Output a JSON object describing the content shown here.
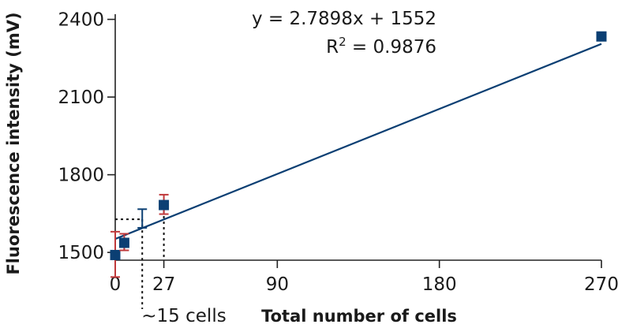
{
  "chart_data": {
    "type": "scatter",
    "title": "",
    "xlabel": "Total number of cells",
    "ylabel": "Fluorescence intensity (mV)",
    "xlim": [
      0,
      270
    ],
    "ylim": [
      1470,
      2420
    ],
    "x_ticks": [
      0,
      27,
      90,
      180,
      270
    ],
    "x_tick_labels": [
      "0",
      "27",
      "90",
      "180",
      "270"
    ],
    "y_ticks": [
      1500,
      1800,
      2100,
      2400
    ],
    "y_tick_labels": [
      "1500",
      "1800",
      "2100",
      "2400"
    ],
    "grid": false,
    "series": [
      {
        "color": "#0b3f73",
        "points": [
          {
            "x": 0,
            "y": 1490,
            "err_low": 1405,
            "err_high": 1580,
            "err_color": "#c0393b"
          },
          {
            "x": 5,
            "y": 1537,
            "err_low": 1508,
            "err_high": 1572,
            "err_color": "#c0393b"
          },
          {
            "x": 27,
            "y": 1683,
            "err_low": 1648,
            "err_high": 1723,
            "err_color": "#c0393b"
          },
          {
            "x": 270,
            "y": 2334
          }
        ]
      }
    ],
    "trendline": {
      "slope": 2.7898,
      "intercept": 1552,
      "x_range": [
        0,
        270
      ],
      "color": "#0b3f73",
      "equation": "y = 2.7898x + 1552",
      "r2_prefix": "R",
      "r2_exponent": "2",
      "r2_value": " = 0.9876"
    },
    "detection_limit": {
      "x": 15,
      "y": 1628,
      "err_low": 1595,
      "err_high": 1667,
      "err_color": "#0b3f73",
      "label": "~15 cells"
    }
  }
}
